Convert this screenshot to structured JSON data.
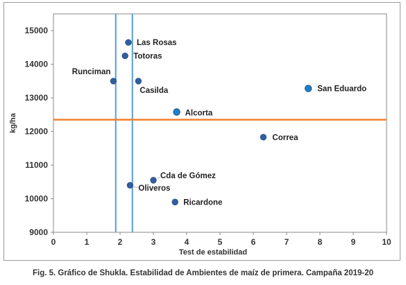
{
  "caption": "Fig. 5. Gráfico de Shukla. Estabilidad de Ambientes de maíz de primera. Campaña 2019-20",
  "chart_data": {
    "type": "scatter",
    "xlabel": "Test de estabilidad",
    "ylabel": "kg/ha",
    "xlim": [
      0,
      10
    ],
    "ylim": [
      9000,
      15500
    ],
    "xticks": [
      "0",
      "1",
      "2",
      "3",
      "4",
      "5",
      "6",
      "7",
      "8",
      "9",
      "10"
    ],
    "yticks": [
      "9000",
      "10000",
      "11000",
      "12000",
      "13000",
      "14000",
      "15000"
    ],
    "grid": false,
    "mean_yield": 12350,
    "stability_limits": [
      1.87,
      2.37
    ],
    "colors": {
      "points": "#2f5f9e",
      "highlight": "#1f7fc9",
      "mean_line": "#f07f2f",
      "limit_lines": "#5b9bd5"
    },
    "points": [
      {
        "label": "Las Rosas",
        "x": 2.25,
        "y": 14650
      },
      {
        "label": "Totoras",
        "x": 2.15,
        "y": 14250
      },
      {
        "label": "Runciman",
        "x": 1.8,
        "y": 13500
      },
      {
        "label": "Casilda",
        "x": 2.55,
        "y": 13500
      },
      {
        "label": "San Eduardo",
        "x": 7.65,
        "y": 13280
      },
      {
        "label": "Alcorta",
        "x": 3.7,
        "y": 12580
      },
      {
        "label": "Correa",
        "x": 6.3,
        "y": 11830
      },
      {
        "label": "Cda de Gómez",
        "x": 3.0,
        "y": 10550
      },
      {
        "label": "Oliveros",
        "x": 2.3,
        "y": 10400
      },
      {
        "label": "Ricardone",
        "x": 3.65,
        "y": 9900
      }
    ]
  }
}
